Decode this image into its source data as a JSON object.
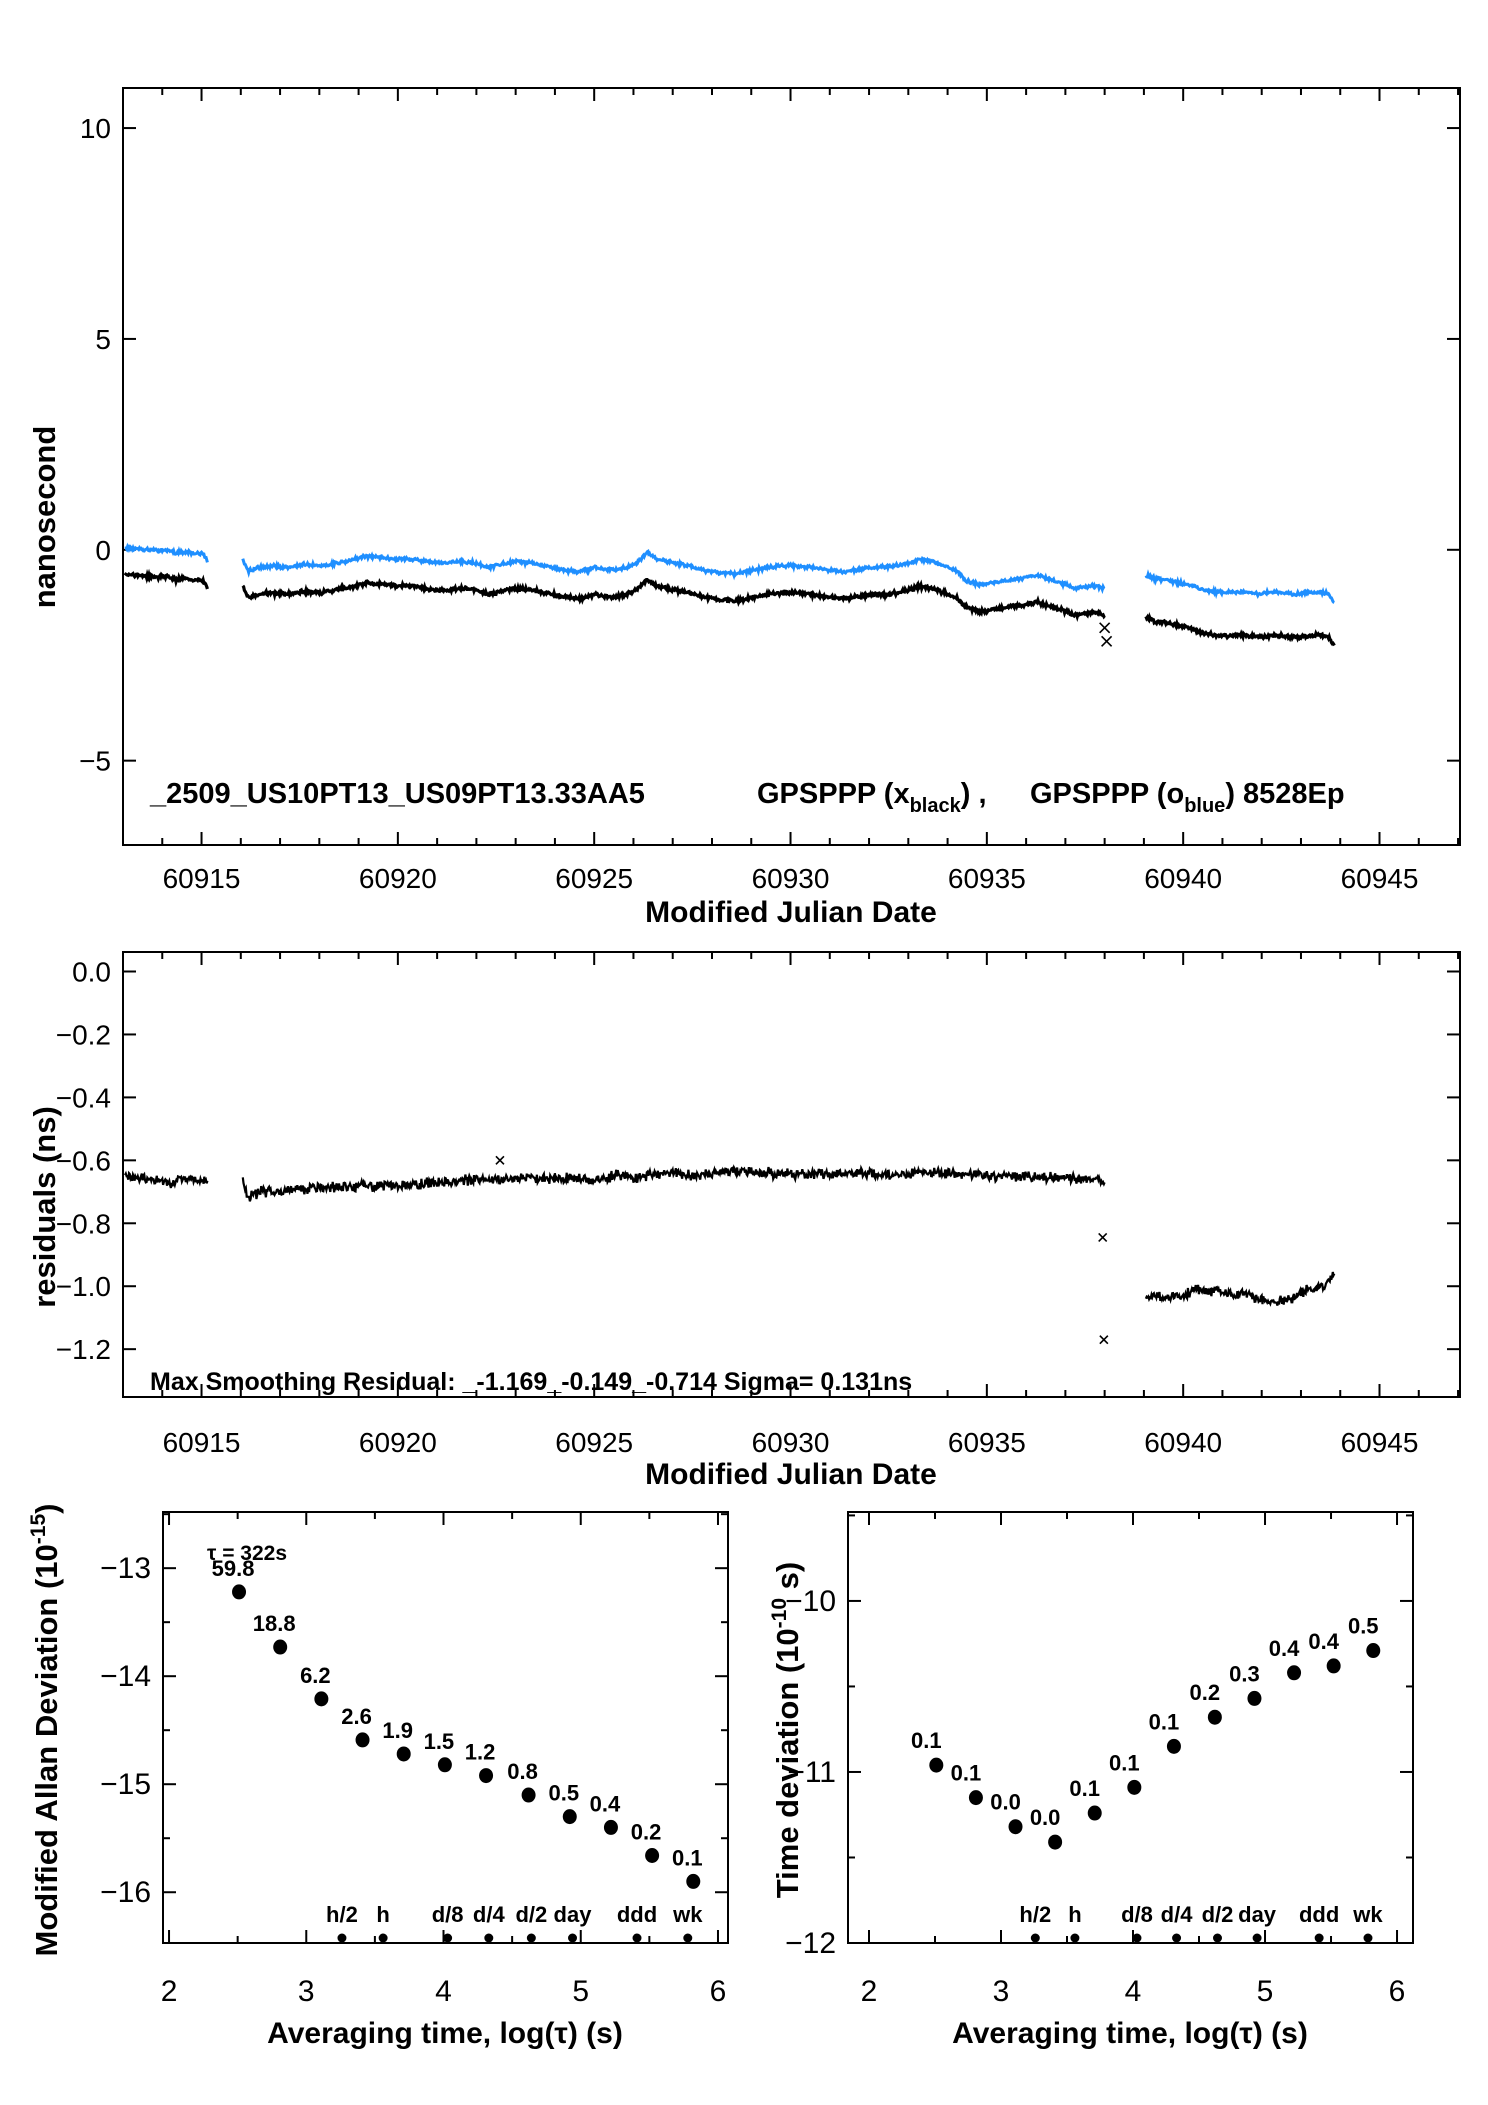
{
  "colors": {
    "black": "#000000",
    "blue": "#1f8fff",
    "red": "#ff0000",
    "background": "#ffffff"
  },
  "legend": {
    "file": "_2509_US10PT13_US09PT13.33AA5",
    "g1": "GPSPPP (x",
    "g1sub": "black",
    "g1close": ") ,",
    "g2": "GPSPPP (o",
    "g2sub": "blue",
    "g2close": ")",
    "code": "8528Ep"
  },
  "chart_data": [
    {
      "type": "line",
      "id": "phase-comparison",
      "xlabel": "Modified Julian Date",
      "ylabel": "nanosecond",
      "xlim": [
        60913.0,
        60947.05
      ],
      "ylim": [
        -7.0,
        10.95
      ],
      "xticks": {
        "values": [
          60915,
          60920,
          60925,
          60930,
          60935,
          60940,
          60945
        ],
        "labels": [
          "60915",
          "60920",
          "60925",
          "60930",
          "60935",
          "60940",
          "60945"
        ],
        "minor": 1
      },
      "yticks": {
        "values": [
          10,
          5,
          0,
          -5
        ],
        "labels": [
          "10",
          "5",
          "0",
          "−5"
        ],
        "minor": 0
      },
      "series": [
        {
          "name": "GPSPPP o blue",
          "color_key": "blue",
          "marker": "o",
          "segments": [
            [
              [
                60913.05,
                0.05
              ],
              [
                60913.4,
                0.02
              ],
              [
                60913.8,
                -0.02
              ],
              [
                60914.1,
                0.0
              ],
              [
                60914.35,
                -0.08
              ],
              [
                60914.6,
                -0.04
              ],
              [
                60914.8,
                -0.1
              ],
              [
                60915.0,
                -0.07
              ],
              [
                60915.1,
                -0.18
              ],
              [
                60915.15,
                -0.3
              ]
            ],
            [
              [
                60916.05,
                -0.25
              ],
              [
                60916.2,
                -0.5
              ],
              [
                60916.45,
                -0.42
              ],
              [
                60916.8,
                -0.38
              ],
              [
                60917.2,
                -0.42
              ],
              [
                60917.6,
                -0.35
              ],
              [
                60918.0,
                -0.38
              ],
              [
                60918.4,
                -0.32
              ],
              [
                60918.8,
                -0.25
              ],
              [
                60919.2,
                -0.15
              ],
              [
                60919.6,
                -0.18
              ],
              [
                60920.0,
                -0.22
              ],
              [
                60920.4,
                -0.22
              ],
              [
                60920.8,
                -0.3
              ],
              [
                60921.2,
                -0.32
              ],
              [
                60921.6,
                -0.28
              ],
              [
                60922.0,
                -0.32
              ],
              [
                60922.3,
                -0.42
              ],
              [
                60922.6,
                -0.35
              ],
              [
                60923.0,
                -0.28
              ],
              [
                60923.4,
                -0.32
              ],
              [
                60923.8,
                -0.38
              ],
              [
                60924.2,
                -0.48
              ],
              [
                60924.6,
                -0.52
              ],
              [
                60925.0,
                -0.42
              ],
              [
                60925.4,
                -0.48
              ],
              [
                60925.8,
                -0.42
              ],
              [
                60926.1,
                -0.3
              ],
              [
                60926.35,
                -0.05
              ],
              [
                60926.6,
                -0.22
              ],
              [
                60927.0,
                -0.3
              ],
              [
                60927.4,
                -0.38
              ],
              [
                60927.8,
                -0.48
              ],
              [
                60928.2,
                -0.55
              ],
              [
                60928.6,
                -0.58
              ],
              [
                60929.0,
                -0.5
              ],
              [
                60929.4,
                -0.42
              ],
              [
                60929.8,
                -0.38
              ],
              [
                60930.2,
                -0.38
              ],
              [
                60930.6,
                -0.42
              ],
              [
                60931.0,
                -0.48
              ],
              [
                60931.4,
                -0.52
              ],
              [
                60931.8,
                -0.45
              ],
              [
                60932.2,
                -0.42
              ],
              [
                60932.6,
                -0.4
              ],
              [
                60933.0,
                -0.32
              ],
              [
                60933.3,
                -0.22
              ],
              [
                60933.6,
                -0.28
              ],
              [
                60933.9,
                -0.38
              ],
              [
                60934.2,
                -0.48
              ],
              [
                60934.45,
                -0.72
              ],
              [
                60934.8,
                -0.82
              ],
              [
                60935.2,
                -0.78
              ],
              [
                60935.6,
                -0.72
              ],
              [
                60936.0,
                -0.65
              ],
              [
                60936.3,
                -0.6
              ],
              [
                60936.6,
                -0.7
              ],
              [
                60936.9,
                -0.78
              ],
              [
                60937.2,
                -0.9
              ],
              [
                60937.5,
                -0.88
              ],
              [
                60937.8,
                -0.85
              ],
              [
                60938.0,
                -0.92
              ]
            ],
            [
              [
                60939.05,
                -0.6
              ],
              [
                60939.3,
                -0.68
              ],
              [
                60939.6,
                -0.72
              ],
              [
                60939.9,
                -0.78
              ],
              [
                60940.2,
                -0.85
              ],
              [
                60940.5,
                -0.95
              ],
              [
                60940.8,
                -1.0
              ],
              [
                60941.1,
                -1.02
              ],
              [
                60941.4,
                -1.0
              ],
              [
                60941.7,
                -1.02
              ],
              [
                60942.0,
                -1.05
              ],
              [
                60942.3,
                -1.0
              ],
              [
                60942.6,
                -1.02
              ],
              [
                60942.9,
                -1.05
              ],
              [
                60943.2,
                -1.02
              ],
              [
                60943.5,
                -1.0
              ],
              [
                60943.7,
                -1.05
              ],
              [
                60943.85,
                -1.25
              ]
            ]
          ]
        },
        {
          "name": "GPSPPP x black",
          "color_key": "black",
          "marker": "x",
          "derived_from": "GPSPPP o blue",
          "segment_offsets_ns": [
            -0.63,
            -0.64,
            -1.02
          ]
        }
      ],
      "outliers_black": [
        [
          60938.0,
          -1.85
        ],
        [
          60938.05,
          -2.17
        ]
      ]
    },
    {
      "type": "line",
      "id": "residuals",
      "xlabel": "Modified Julian Date",
      "ylabel": "residuals (ns)",
      "annotation": "Max Smoothing Residual: _-1.169_-0.149_-0.714  Sigma= 0.131ns",
      "xlim": [
        60913.0,
        60947.05
      ],
      "ylim": [
        -1.352,
        0.062
      ],
      "xticks": {
        "values": [
          60915,
          60920,
          60925,
          60930,
          60935,
          60940,
          60945
        ],
        "labels": [
          "60915",
          "60920",
          "60925",
          "60930",
          "60935",
          "60940",
          "60945"
        ],
        "minor": 1
      },
      "yticks": {
        "values": [
          0.0,
          -0.2,
          -0.4,
          -0.6,
          -0.8,
          -1.0,
          -1.2
        ],
        "labels": [
          "0.0",
          "−0.2",
          "−0.4",
          "−0.6",
          "−0.8",
          "−1.0",
          "−1.2"
        ],
        "minor": 0
      },
      "series": [
        {
          "name": "smoothing residual",
          "color_key": "black",
          "marker": "x",
          "segments": [
            [
              [
                60913.05,
                -0.65
              ],
              [
                60913.6,
                -0.66
              ],
              [
                60914.2,
                -0.67
              ],
              [
                60914.7,
                -0.66
              ],
              [
                60915.15,
                -0.665
              ]
            ],
            [
              [
                60916.05,
                -0.655
              ],
              [
                60916.15,
                -0.72
              ],
              [
                60916.5,
                -0.7
              ],
              [
                60917.0,
                -0.695
              ],
              [
                60917.5,
                -0.69
              ],
              [
                60918.5,
                -0.685
              ],
              [
                60919.5,
                -0.68
              ],
              [
                60920.5,
                -0.675
              ],
              [
                60921.5,
                -0.665
              ],
              [
                60922.5,
                -0.66
              ],
              [
                60923.5,
                -0.655
              ],
              [
                60924.5,
                -0.655
              ],
              [
                60925.2,
                -0.665
              ],
              [
                60925.6,
                -0.645
              ],
              [
                60926.0,
                -0.655
              ],
              [
                60927.0,
                -0.64
              ],
              [
                60927.5,
                -0.65
              ],
              [
                60928.0,
                -0.64
              ],
              [
                60928.5,
                -0.635
              ],
              [
                60929.5,
                -0.64
              ],
              [
                60930.5,
                -0.645
              ],
              [
                60931.5,
                -0.64
              ],
              [
                60932.5,
                -0.645
              ],
              [
                60933.5,
                -0.64
              ],
              [
                60934.5,
                -0.645
              ],
              [
                60935.5,
                -0.65
              ],
              [
                60936.5,
                -0.655
              ],
              [
                60937.5,
                -0.66
              ],
              [
                60938.0,
                -0.67
              ]
            ],
            [
              [
                60939.05,
                -1.03
              ],
              [
                60939.5,
                -1.035
              ],
              [
                60940.0,
                -1.03
              ],
              [
                60940.3,
                -1.01
              ],
              [
                60940.7,
                -1.015
              ],
              [
                60941.0,
                -1.02
              ],
              [
                60941.3,
                -1.03
              ],
              [
                60941.6,
                -1.025
              ],
              [
                60941.9,
                -1.04
              ],
              [
                60942.3,
                -1.05
              ],
              [
                60942.7,
                -1.04
              ],
              [
                60943.0,
                -1.02
              ],
              [
                60943.3,
                -1.01
              ],
              [
                60943.6,
                -1.0
              ],
              [
                60943.85,
                -0.96
              ]
            ]
          ]
        }
      ],
      "outliers_black": [
        [
          60922.6,
          -0.6
        ],
        [
          60937.95,
          -0.845
        ],
        [
          60937.98,
          -1.17
        ]
      ]
    },
    {
      "type": "scatter",
      "id": "modified-allan-deviation",
      "xlabel": "Averaging time, log(τ) (s)",
      "ylabel_main": "Modified Allan Deviation (10",
      "ylabel_sup": "-15",
      "ylabel_close": ")",
      "tau_note": "τ = 322s",
      "xlim": [
        1.956,
        6.073
      ],
      "ylim": [
        -16.47,
        -12.48
      ],
      "xticks": {
        "values": [
          2,
          3,
          4,
          5,
          6
        ],
        "labels": [
          "2",
          "3",
          "4",
          "5",
          "6"
        ],
        "minor": 0.5
      },
      "yticks": {
        "values": [
          -13,
          -14,
          -15,
          -16
        ],
        "labels": [
          "−13",
          "−14",
          "−15",
          "−16"
        ],
        "minor": 0.5
      },
      "x": [
        2.51,
        2.81,
        3.11,
        3.41,
        3.71,
        4.01,
        4.31,
        4.62,
        4.92,
        5.22,
        5.52,
        5.82
      ],
      "y": [
        -13.22,
        -13.73,
        -14.21,
        -14.59,
        -14.72,
        -14.82,
        -14.92,
        -15.1,
        -15.3,
        -15.4,
        -15.66,
        -15.9
      ],
      "point_labels": [
        "59.8",
        "18.8",
        "6.2",
        "2.6",
        "1.9",
        "1.5",
        "1.2",
        "0.8",
        "0.5",
        "0.4",
        "0.2",
        "0.1"
      ],
      "label_offset": [
        -6,
        -16
      ],
      "time_markers": [
        {
          "label": "h/2",
          "x": 3.26
        },
        {
          "label": "h",
          "x": 3.56
        },
        {
          "label": "d/8",
          "x": 4.03
        },
        {
          "label": "d/4",
          "x": 4.33
        },
        {
          "label": "d/2",
          "x": 4.64
        },
        {
          "label": "day",
          "x": 4.94
        },
        {
          "label": "ddd",
          "x": 5.41
        },
        {
          "label": "wk",
          "x": 5.78
        }
      ]
    },
    {
      "type": "scatter",
      "id": "time-deviation",
      "xlabel": "Averaging time, log(τ) (s)",
      "ylabel_main": "Time deviation (10",
      "ylabel_sup": "-10",
      "ylabel_close": " s)",
      "xlim": [
        1.841,
        6.121
      ],
      "ylim": [
        -12.0,
        -9.48
      ],
      "xticks": {
        "values": [
          2,
          3,
          4,
          5,
          6
        ],
        "labels": [
          "2",
          "3",
          "4",
          "5",
          "6"
        ],
        "minor": 0.5
      },
      "yticks": {
        "values": [
          -10,
          -11,
          -12
        ],
        "labels": [
          "−10",
          "−11",
          "−12"
        ],
        "minor": 0.5
      },
      "x": [
        2.51,
        2.81,
        3.11,
        3.41,
        3.71,
        4.01,
        4.31,
        4.62,
        4.92,
        5.22,
        5.52,
        5.82
      ],
      "y": [
        -10.96,
        -11.15,
        -11.32,
        -11.41,
        -11.24,
        -11.09,
        -10.85,
        -10.68,
        -10.57,
        -10.42,
        -10.38,
        -10.29
      ],
      "point_labels": [
        "0.1",
        "0.1",
        "0.0",
        "0.0",
        "0.1",
        "0.1",
        "0.1",
        "0.2",
        "0.3",
        "0.4",
        "0.4",
        "0.5"
      ],
      "label_offset": [
        -10,
        -17
      ],
      "time_markers": [
        {
          "label": "h/2",
          "x": 3.26
        },
        {
          "label": "h",
          "x": 3.56
        },
        {
          "label": "d/8",
          "x": 4.03
        },
        {
          "label": "d/4",
          "x": 4.33
        },
        {
          "label": "d/2",
          "x": 4.64
        },
        {
          "label": "day",
          "x": 4.94
        },
        {
          "label": "ddd",
          "x": 5.41
        },
        {
          "label": "wk",
          "x": 5.78
        }
      ]
    }
  ]
}
